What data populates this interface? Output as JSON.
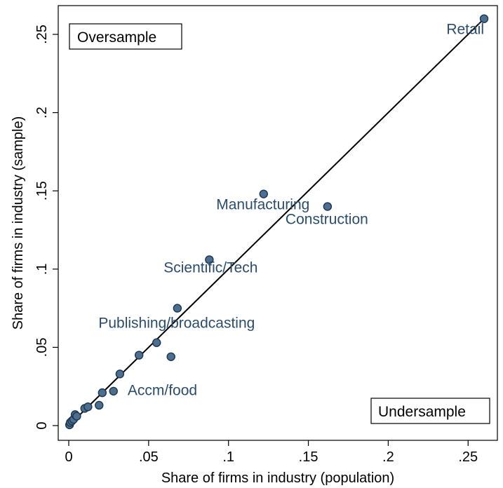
{
  "chart_data": {
    "type": "scatter",
    "title": "",
    "xlabel": "Share of firms in industry (population)",
    "ylabel": "Share of firms in industry (sample)",
    "xlim": [
      0,
      0.26
    ],
    "ylim": [
      0,
      0.26
    ],
    "xticks": [
      0,
      0.05,
      0.1,
      0.15,
      0.2,
      0.25
    ],
    "xtick_labels": [
      "0",
      ".05",
      ".1",
      ".15",
      ".2",
      ".25"
    ],
    "yticks": [
      0,
      0.05,
      0.1,
      0.15,
      0.2,
      0.25
    ],
    "ytick_labels": [
      "0",
      ".05",
      ".1",
      ".15",
      ".2",
      ".25"
    ],
    "grid": false,
    "reference_line": {
      "x": [
        0,
        0.26
      ],
      "y": [
        0,
        0.26
      ],
      "type": "45-degree"
    },
    "region_labels": [
      {
        "text": "Oversample",
        "placement": "top-left"
      },
      {
        "text": "Undersample",
        "placement": "bottom-right"
      }
    ],
    "points": [
      {
        "x": 0.0005,
        "y": 0.0005
      },
      {
        "x": 0.001,
        "y": 0.002
      },
      {
        "x": 0.002,
        "y": 0.003
      },
      {
        "x": 0.003,
        "y": 0.004
      },
      {
        "x": 0.004,
        "y": 0.007
      },
      {
        "x": 0.005,
        "y": 0.006
      },
      {
        "x": 0.01,
        "y": 0.011
      },
      {
        "x": 0.012,
        "y": 0.012
      },
      {
        "x": 0.019,
        "y": 0.013
      },
      {
        "x": 0.021,
        "y": 0.021
      },
      {
        "x": 0.028,
        "y": 0.022
      },
      {
        "x": 0.032,
        "y": 0.033
      },
      {
        "x": 0.044,
        "y": 0.045
      },
      {
        "x": 0.055,
        "y": 0.053
      },
      {
        "x": 0.064,
        "y": 0.044
      },
      {
        "x": 0.068,
        "y": 0.075
      },
      {
        "x": 0.088,
        "y": 0.106
      },
      {
        "x": 0.122,
        "y": 0.148
      },
      {
        "x": 0.162,
        "y": 0.14
      },
      {
        "x": 0.26,
        "y": 0.26
      }
    ],
    "annotations": [
      {
        "text": "Retail",
        "x": 0.26,
        "y": 0.26
      },
      {
        "text": "Manufacturing",
        "x": 0.122,
        "y": 0.148
      },
      {
        "text": "Construction",
        "x": 0.162,
        "y": 0.14
      },
      {
        "text": "Scientific/Tech",
        "x": 0.088,
        "y": 0.106
      },
      {
        "text": "Publishing/broadcasting",
        "x": 0.068,
        "y": 0.075
      },
      {
        "text": "Accm/food",
        "x": 0.032,
        "y": 0.033
      }
    ],
    "colors": {
      "marker_fill": "#4c6f8f",
      "marker_stroke": "#1c3550",
      "label": "#2a4d6e",
      "line": "#000000"
    }
  }
}
